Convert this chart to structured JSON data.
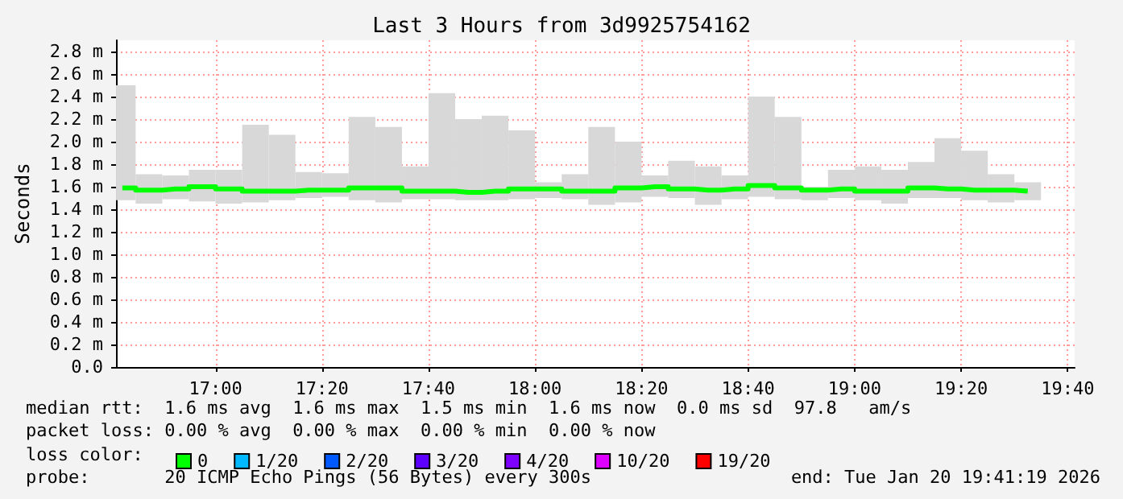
{
  "chart_data": {
    "type": "step",
    "title": "Last 3 Hours from 3d9925754162",
    "ylabel": "Seconds",
    "x": [
      16.7083,
      16.7917,
      16.875,
      16.9583,
      17.0417,
      17.125,
      17.2083,
      17.2917,
      17.375,
      17.4583,
      17.5417,
      17.625,
      17.7083,
      17.7917,
      17.875,
      17.9583,
      18.0417,
      18.125,
      18.2083,
      18.2917,
      18.375,
      18.4583,
      18.5417,
      18.625,
      18.7083,
      18.7917,
      18.875,
      18.9583,
      19.0417,
      19.125,
      19.2083,
      19.2917,
      19.375,
      19.4583,
      19.5417
    ],
    "series": [
      {
        "type": "bar",
        "color": "#d8d8d8",
        "base": [
          1.48,
          1.45,
          1.49,
          1.47,
          1.45,
          1.46,
          1.48,
          1.5,
          1.51,
          1.48,
          1.46,
          1.49,
          1.49,
          1.48,
          1.48,
          1.49,
          1.5,
          1.49,
          1.44,
          1.46,
          1.51,
          1.5,
          1.44,
          1.49,
          1.51,
          1.49,
          1.48,
          1.5,
          1.48,
          1.45,
          1.5,
          1.5,
          1.48,
          1.46,
          1.48
        ],
        "values": [
          1.02,
          0.26,
          0.21,
          0.28,
          0.3,
          0.69,
          0.58,
          0.23,
          0.21,
          0.74,
          0.67,
          0.29,
          0.94,
          0.72,
          0.75,
          0.61,
          0.14,
          0.22,
          0.69,
          0.54,
          0.19,
          0.33,
          0.34,
          0.21,
          0.89,
          0.73,
          0.12,
          0.25,
          0.3,
          0.3,
          0.32,
          0.53,
          0.44,
          0.25,
          0.16
        ]
      },
      {
        "name": "0",
        "color": "#00ff00",
        "values": [
          1.59,
          1.57,
          1.58,
          1.6,
          1.58,
          1.56,
          1.56,
          1.57,
          1.57,
          1.59,
          1.59,
          1.56,
          1.56,
          1.55,
          1.56,
          1.58,
          1.58,
          1.56,
          1.56,
          1.59,
          1.6,
          1.58,
          1.57,
          1.58,
          1.61,
          1.59,
          1.57,
          1.58,
          1.56,
          1.56,
          1.59,
          1.58,
          1.57,
          1.57,
          1.56
        ]
      },
      {
        "name": "1/20",
        "color": "#00b8ff",
        "values": [
          null,
          null,
          null,
          null,
          null,
          null,
          null,
          null,
          null,
          null,
          null,
          null,
          null,
          null,
          null,
          null,
          null,
          null,
          null,
          null,
          null,
          null,
          null,
          null,
          null,
          null,
          null,
          null,
          null,
          null,
          null,
          null,
          null,
          null,
          null
        ]
      },
      {
        "name": "2/20",
        "color": "#0059ff",
        "values": [
          null,
          null,
          null,
          null,
          null,
          null,
          null,
          null,
          null,
          null,
          null,
          null,
          null,
          null,
          null,
          null,
          null,
          null,
          null,
          null,
          null,
          null,
          null,
          null,
          null,
          null,
          null,
          null,
          null,
          null,
          null,
          null,
          null,
          null,
          null
        ]
      },
      {
        "name": "3/20",
        "color": "#5e00ff",
        "values": [
          null,
          null,
          null,
          null,
          null,
          null,
          null,
          null,
          null,
          null,
          null,
          null,
          null,
          null,
          null,
          null,
          null,
          null,
          null,
          null,
          null,
          null,
          null,
          null,
          null,
          null,
          null,
          null,
          null,
          null,
          null,
          null,
          null,
          null,
          null
        ]
      },
      {
        "name": "4/20",
        "color": "#7e00ff",
        "values": [
          null,
          null,
          null,
          null,
          null,
          null,
          null,
          null,
          null,
          null,
          null,
          null,
          null,
          null,
          null,
          null,
          null,
          null,
          null,
          null,
          null,
          null,
          null,
          null,
          null,
          null,
          null,
          null,
          null,
          null,
          null,
          null,
          null,
          null,
          null
        ]
      },
      {
        "name": "10/20",
        "color": "#dd00ff",
        "values": [
          null,
          null,
          null,
          null,
          null,
          null,
          null,
          null,
          null,
          null,
          null,
          null,
          null,
          null,
          null,
          null,
          null,
          null,
          null,
          null,
          null,
          null,
          null,
          null,
          null,
          null,
          null,
          null,
          null,
          null,
          null,
          null,
          null,
          null,
          null
        ]
      },
      {
        "name": "19/20",
        "color": "#ff0000",
        "values": [
          null,
          null,
          null,
          null,
          null,
          null,
          null,
          null,
          null,
          null,
          null,
          null,
          null,
          null,
          null,
          null,
          null,
          null,
          null,
          null,
          null,
          null,
          null,
          null,
          null,
          null,
          null,
          null,
          null,
          null,
          null,
          null,
          null,
          null,
          null
        ]
      }
    ],
    "xlim": [
      16.6886,
      19.6886
    ],
    "xticks": [
      {
        "value": 17,
        "label": "17:00"
      },
      {
        "value": 17.3333,
        "label": "17:20"
      },
      {
        "value": 17.6667,
        "label": "17:40"
      },
      {
        "value": 18,
        "label": "18:00"
      },
      {
        "value": 18.3333,
        "label": "18:20"
      },
      {
        "value": 18.6667,
        "label": "18:40"
      },
      {
        "value": 19,
        "label": "19:00"
      },
      {
        "value": 19.3333,
        "label": "19:20"
      },
      {
        "value": 19.6667,
        "label": "19:40"
      }
    ],
    "ylim": [
      0,
      2.9
    ],
    "yticks": [
      {
        "value": 0,
        "label": "0.0"
      },
      {
        "value": 0.2,
        "label": "0.2 m"
      },
      {
        "value": 0.4,
        "label": "0.4 m"
      },
      {
        "value": 0.6,
        "label": "0.6 m"
      },
      {
        "value": 0.8,
        "label": "0.8 m"
      },
      {
        "value": 1.0,
        "label": "1.0 m"
      },
      {
        "value": 1.2,
        "label": "1.2 m"
      },
      {
        "value": 1.4,
        "label": "1.4 m"
      },
      {
        "value": 1.6,
        "label": "1.6 m"
      },
      {
        "value": 1.8,
        "label": "1.8 m"
      },
      {
        "value": 2.0,
        "label": "2.0 m"
      },
      {
        "value": 2.2,
        "label": "2.2 m"
      },
      {
        "value": 2.4,
        "label": "2.4 m"
      },
      {
        "value": 2.6,
        "label": "2.6 m"
      },
      {
        "value": 2.8,
        "label": "2.8 m"
      }
    ],
    "grid": true,
    "legend": "bottom",
    "marker": "none",
    "annotations": [
      "median rtt:  1.6 ms avg  1.6 ms max  1.5 ms min  1.6 ms now  0.0 ms sd  97.8   am/s",
      "packet loss: 0.00 % avg  0.00 % max  0.00 % min  0.00 % now",
      "loss color:",
      "probe:       20 ICMP Echo Pings (56 Bytes) every 300s",
      "end: Tue Jan 20 19:41:19 2026"
    ]
  }
}
